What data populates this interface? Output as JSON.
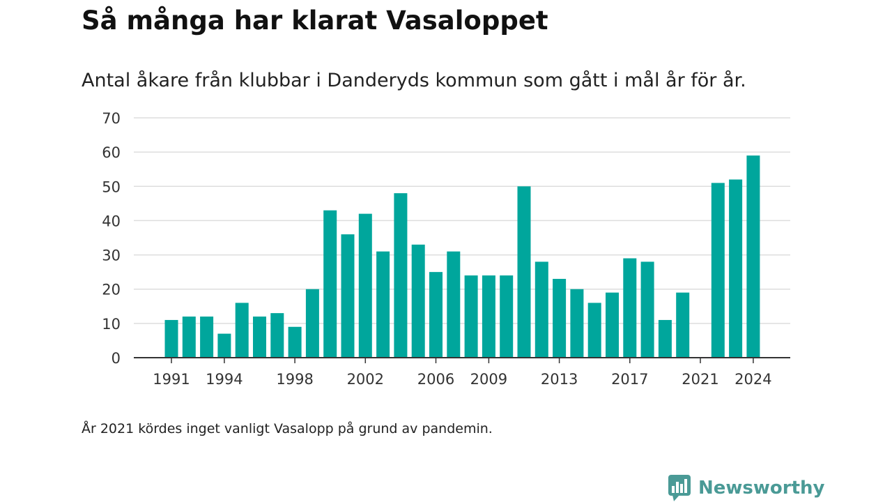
{
  "header": {
    "title": "Så många har klarat Vasaloppet",
    "subtitle": "Antal åkare från klubbar i Danderyds kommun som gått i mål år för år."
  },
  "footnote": "År 2021 kördes inget vanligt Vasalopp på grund av pandemin.",
  "brand": {
    "name": "Newsworthy",
    "icon": "newsworthy-logo-icon",
    "color": "#4a9a96"
  },
  "colors": {
    "bar": "#00a69c",
    "grid": "#dddddd",
    "axis": "#333333"
  },
  "chart_data": {
    "type": "bar",
    "title": "Så många har klarat Vasaloppet",
    "subtitle": "Antal åkare från klubbar i Danderyds kommun som gått i mål år för år.",
    "xlabel": "",
    "ylabel": "",
    "ylim": [
      0,
      70
    ],
    "yticks": [
      0,
      10,
      20,
      30,
      40,
      50,
      60,
      70
    ],
    "xtick_labels": [
      "1991",
      "1994",
      "1998",
      "2002",
      "2006",
      "2009",
      "2013",
      "2017",
      "2021",
      "2024"
    ],
    "grid": true,
    "categories": [
      1991,
      1992,
      1993,
      1994,
      1995,
      1996,
      1997,
      1998,
      1999,
      2000,
      2001,
      2002,
      2003,
      2004,
      2005,
      2006,
      2007,
      2008,
      2009,
      2010,
      2011,
      2012,
      2013,
      2014,
      2015,
      2016,
      2017,
      2018,
      2019,
      2020,
      2021,
      2022,
      2023,
      2024
    ],
    "values": [
      11,
      12,
      12,
      7,
      16,
      12,
      13,
      9,
      20,
      43,
      36,
      42,
      31,
      48,
      33,
      25,
      31,
      24,
      24,
      24,
      50,
      28,
      23,
      20,
      16,
      19,
      29,
      28,
      11,
      19,
      0,
      51,
      52,
      59
    ]
  }
}
